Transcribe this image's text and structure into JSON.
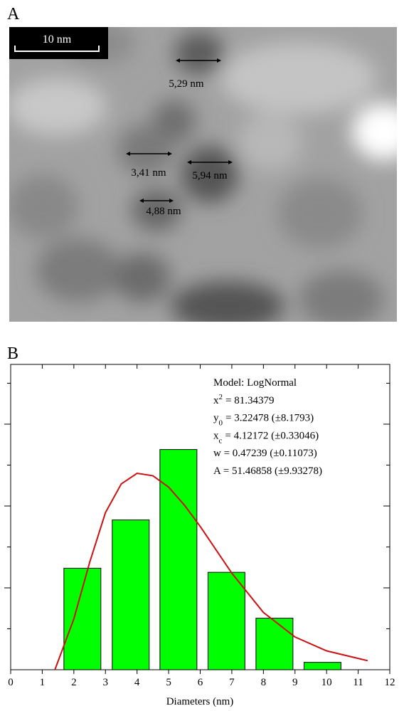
{
  "panel_a": {
    "label": "A",
    "scale_bar": "10 nm",
    "measurements": [
      "5,29 nm",
      "3,41 nm",
      "5,94 nm",
      "4,88 nm"
    ]
  },
  "chart_data": {
    "type": "bar",
    "panel_label": "B",
    "xlabel": "Diameters (nm)",
    "xlim": [
      0,
      12
    ],
    "xticks": [
      0,
      1,
      2,
      3,
      4,
      5,
      6,
      7,
      8,
      9,
      10,
      11,
      12
    ],
    "ylim": [
      0,
      37.3
    ],
    "yticks": [
      5,
      10,
      15,
      20,
      25,
      30,
      35
    ],
    "series": [
      {
        "type": "bar",
        "color": "#00ff00",
        "x": [
          2.27,
          3.8,
          5.31,
          6.83,
          8.35,
          9.87
        ],
        "values": [
          12.4,
          18.3,
          26.9,
          11.9,
          6.3,
          0.9
        ]
      },
      {
        "type": "line",
        "color": "#cc1111",
        "x": [
          1.4,
          2,
          2.5,
          3,
          3.5,
          4,
          4.5,
          5,
          5.5,
          6,
          7,
          8,
          9,
          10,
          11.3
        ],
        "values": [
          0,
          6.2,
          13.1,
          19.2,
          22.7,
          24,
          23.7,
          22.3,
          20.1,
          17.5,
          11.8,
          7,
          4,
          2.3,
          1.1
        ]
      }
    ],
    "annotations": [
      {
        "text": "Model: LogNormal"
      },
      {
        "symbol": "x",
        "sup": "2",
        "value": "= 81.34379"
      },
      {
        "symbol": "y",
        "sub": "0",
        "value": "= 3.22478 (±8.1793)"
      },
      {
        "symbol": "x",
        "sub": "c",
        "value": "= 4.12172 (±0.33046)"
      },
      {
        "text": "w = 0.47239 (±0.11073)"
      },
      {
        "text": "A = 51.46858 (±9.93278)"
      }
    ]
  }
}
